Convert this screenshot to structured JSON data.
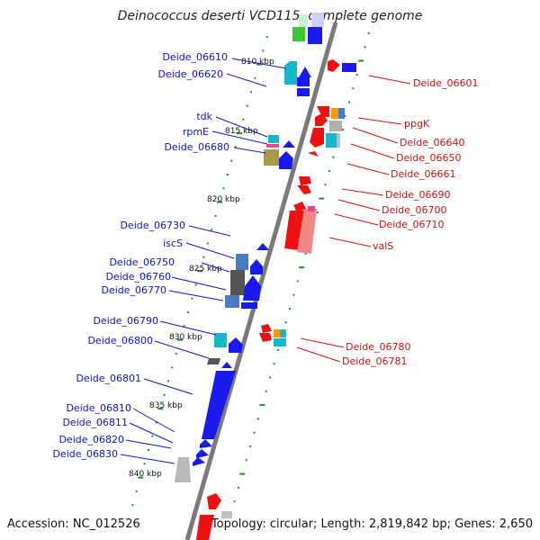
{
  "title": "Deinococcus deserti VCD115, complete genome",
  "footer": {
    "accession": "Accession: NC_012526",
    "topology": "Topology: circular; Length: 2,819,842 bp; Genes: 2,650"
  },
  "colors": {
    "backbone": "#7a7a7a",
    "forward_label": "#1111cc",
    "reverse_label": "#cc1111",
    "tick_green": "#2a8a2a"
  },
  "kbp_markers": [
    "810 kbp",
    "815 kbp",
    "820 kbp",
    "825 kbp",
    "830 kbp",
    "835 kbp",
    "840 kbp"
  ],
  "genes_forward_strand": [
    {
      "name": "Deide_06610"
    },
    {
      "name": "Deide_06620"
    },
    {
      "name": "tdk"
    },
    {
      "name": "rpmE"
    },
    {
      "name": "Deide_06680"
    },
    {
      "name": "Deide_06730"
    },
    {
      "name": "iscS"
    },
    {
      "name": "Deide_06750"
    },
    {
      "name": "Deide_06760"
    },
    {
      "name": "Deide_06770"
    },
    {
      "name": "Deide_06790"
    },
    {
      "name": "Deide_06800"
    },
    {
      "name": "Deide_06801"
    },
    {
      "name": "Deide_06810"
    },
    {
      "name": "Deide_06811"
    },
    {
      "name": "Deide_06820"
    },
    {
      "name": "Deide_06830"
    }
  ],
  "genes_reverse_strand": [
    {
      "name": "Deide_06601"
    },
    {
      "name": "ppgK"
    },
    {
      "name": "Deide_06640"
    },
    {
      "name": "Deide_06650"
    },
    {
      "name": "Deide_06661"
    },
    {
      "name": "Deide_06690"
    },
    {
      "name": "Deide_06700"
    },
    {
      "name": "Deide_06710"
    },
    {
      "name": "valS"
    },
    {
      "name": "Deide_06780"
    },
    {
      "name": "Deide_06781"
    }
  ]
}
